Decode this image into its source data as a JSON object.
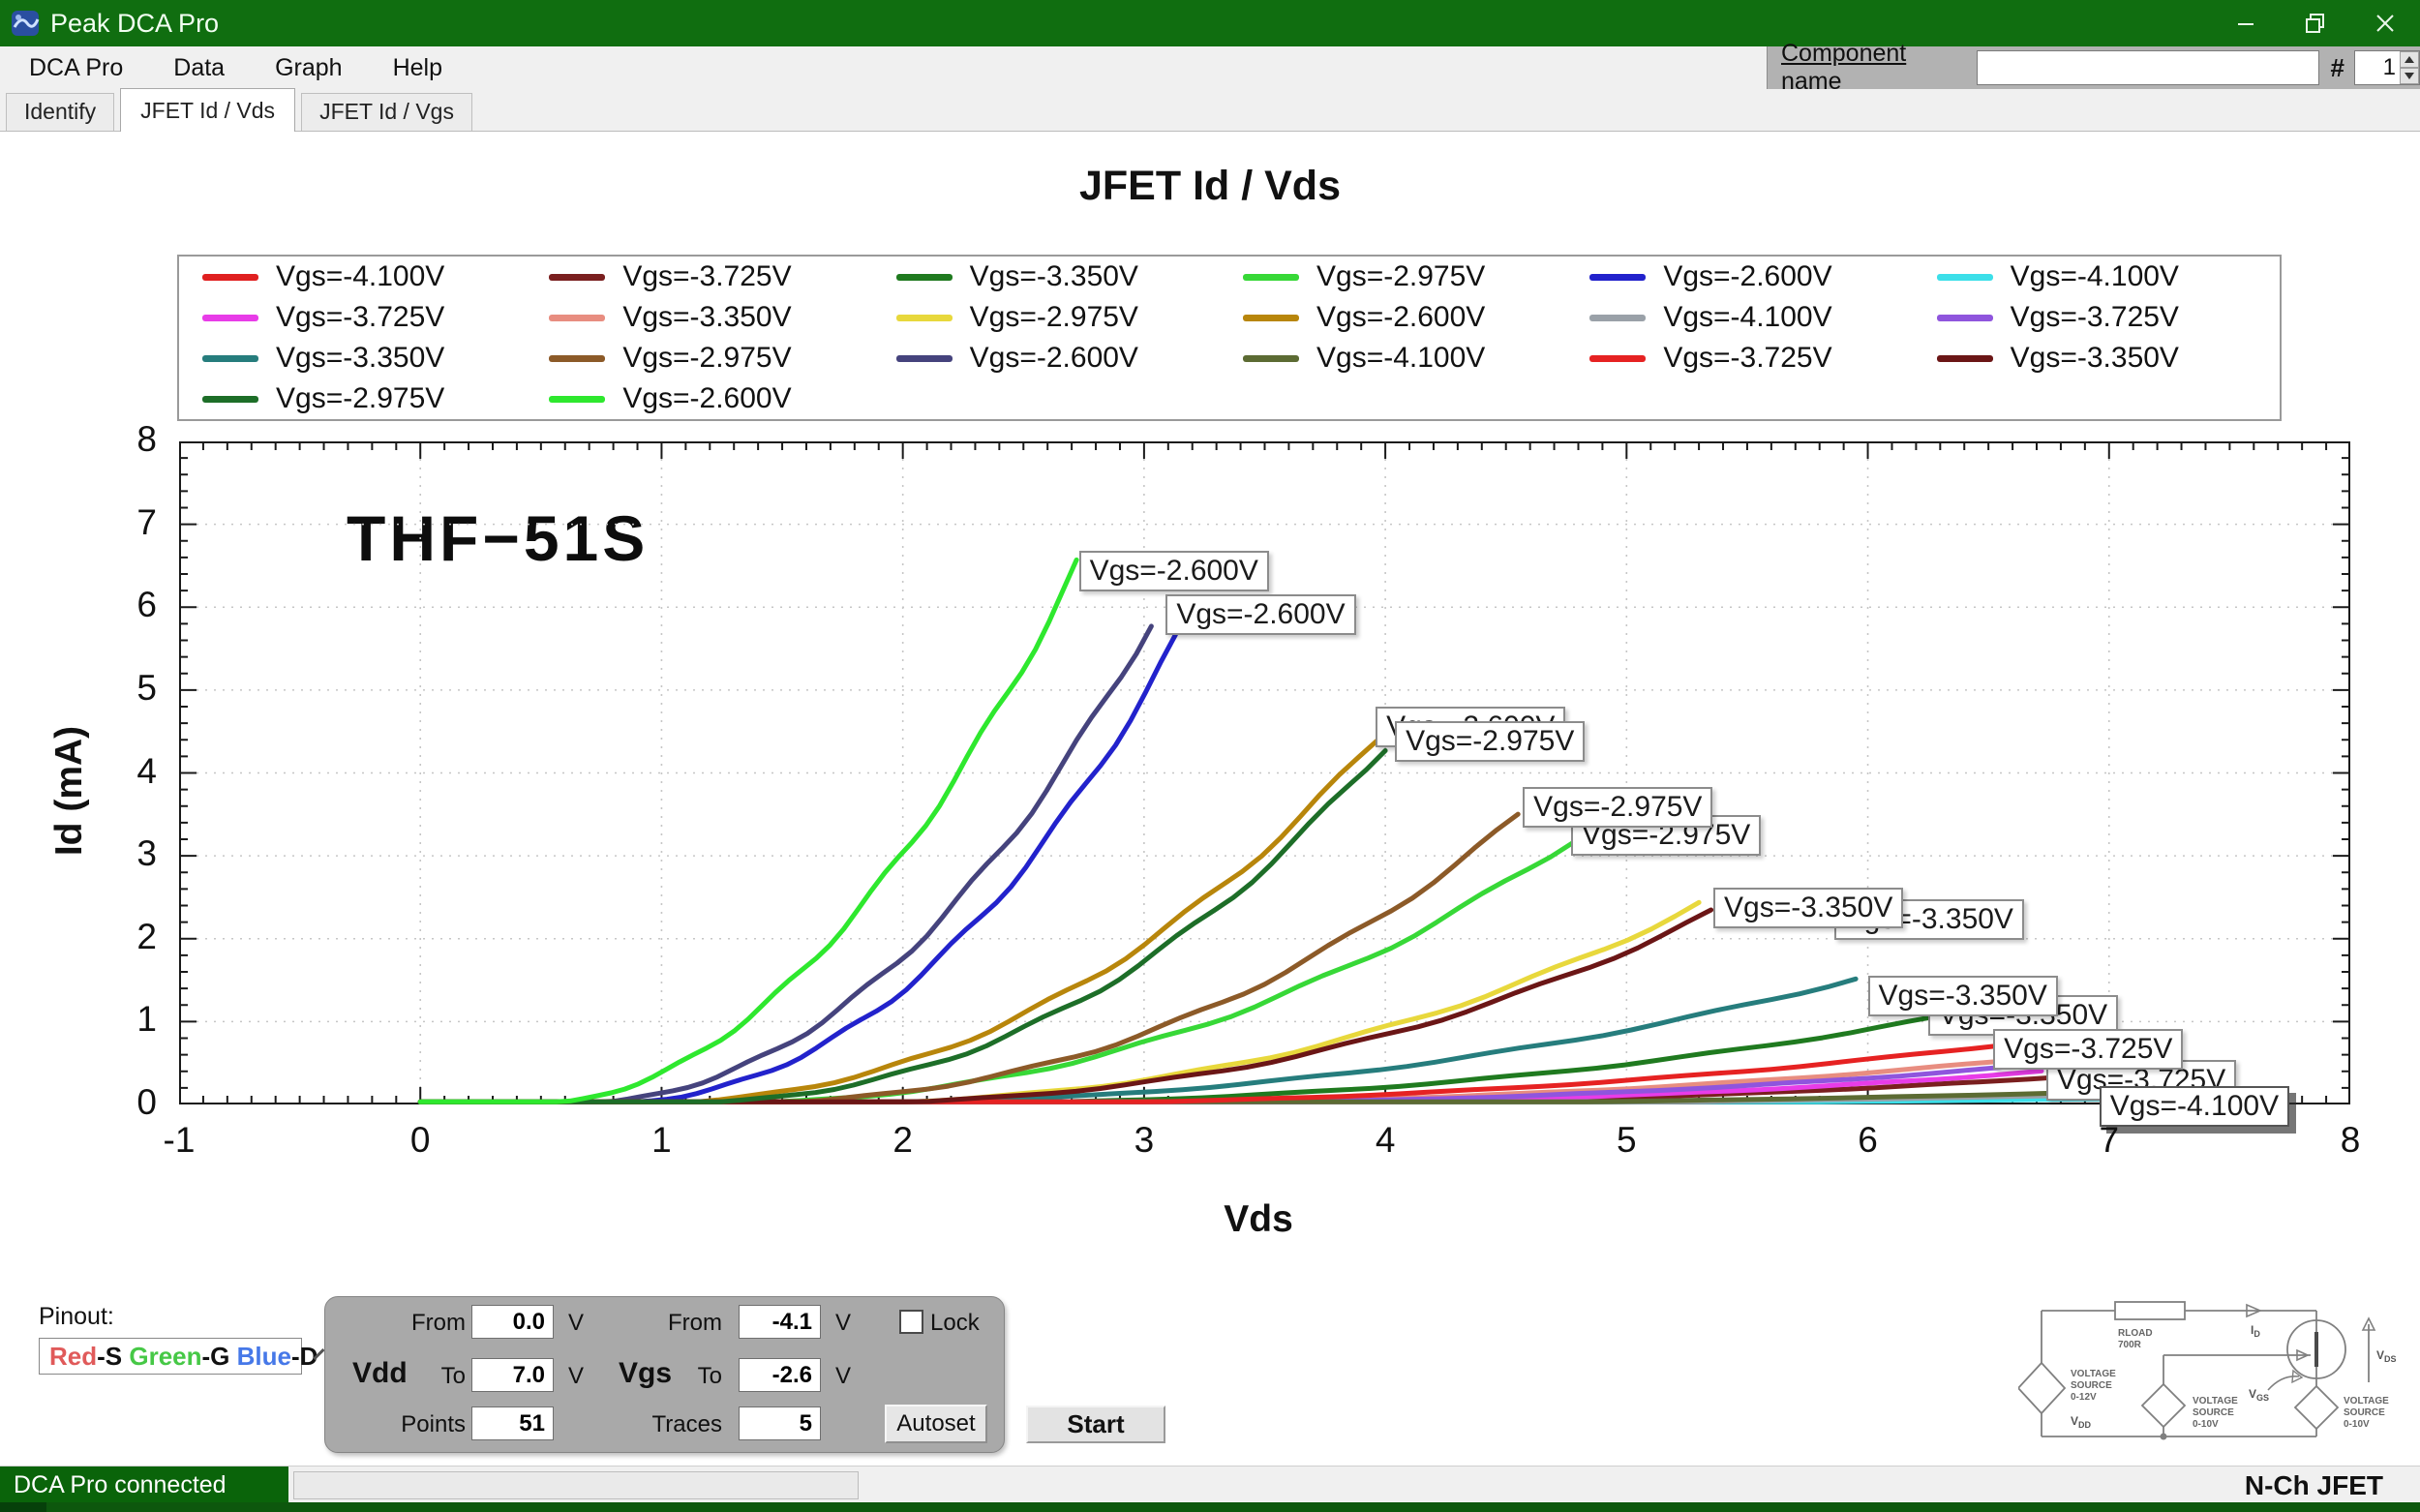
{
  "window": {
    "title": "Peak DCA Pro"
  },
  "menu": {
    "items": [
      "DCA Pro",
      "Data",
      "Graph",
      "Help"
    ]
  },
  "component_bar": {
    "label": "Component name",
    "value": "",
    "hash_label": "#",
    "count": "1"
  },
  "tabs": [
    {
      "label": "Identify",
      "active": false
    },
    {
      "label": "JFET Id / Vds",
      "active": true
    },
    {
      "label": "JFET Id / Vgs",
      "active": false
    }
  ],
  "chart_data": {
    "type": "line",
    "title": "JFET Id / Vds",
    "xlabel": "Vds",
    "ylabel": "Id (mA)",
    "annotation": "THF−51S",
    "xlim": [
      -1,
      8
    ],
    "ylim": [
      0,
      8
    ],
    "xticks": [
      -1,
      0,
      1,
      2,
      3,
      4,
      5,
      6,
      7,
      8
    ],
    "yticks": [
      0,
      1,
      2,
      3,
      4,
      5,
      6,
      7,
      8
    ],
    "grid": "dotted",
    "legend_position": "top",
    "series": [
      {
        "label": "Vgs=-4.100V",
        "color": "#e02020",
        "x_start": 2.8,
        "x_end": 7.0,
        "y_end": 0.1,
        "power": 2.2
      },
      {
        "label": "Vgs=-3.725V",
        "color": "#7a1f1f",
        "x_start": 2.5,
        "x_end": 6.78,
        "y_end": 0.33,
        "power": 2.5
      },
      {
        "label": "Vgs=-3.350V",
        "color": "#1f7a1f",
        "x_start": 1.6,
        "x_end": 6.28,
        "y_end": 1.05,
        "power": 2.4
      },
      {
        "label": "Vgs=-2.975V",
        "color": "#37d837",
        "x_start": 1.0,
        "x_end": 4.78,
        "y_end": 3.2,
        "power": 2.3
      },
      {
        "label": "Vgs=-2.600V",
        "color": "#2222cc",
        "x_start": 0.65,
        "x_end": 3.13,
        "y_end": 5.6,
        "power": 2.3
      },
      {
        "label": "Vgs=-4.100V",
        "color": "#3cdfe9",
        "x_start": 3.0,
        "x_end": 7.0,
        "y_end": 0.07,
        "power": 2.2
      },
      {
        "label": "Vgs=-3.725V",
        "color": "#e83ce8",
        "x_start": 2.4,
        "x_end": 6.72,
        "y_end": 0.4,
        "power": 2.5
      },
      {
        "label": "Vgs=-3.350V",
        "color": "#e88d80",
        "x_start": 2.0,
        "x_end": 6.65,
        "y_end": 0.55,
        "power": 2.4
      },
      {
        "label": "Vgs=-2.975V",
        "color": "#e8d83c",
        "x_start": 1.35,
        "x_end": 5.3,
        "y_end": 2.42,
        "power": 2.4
      },
      {
        "label": "Vgs=-2.600V",
        "color": "#b8860b",
        "x_start": 0.75,
        "x_end": 3.97,
        "y_end": 4.42,
        "power": 2.3
      },
      {
        "label": "Vgs=-4.100V",
        "color": "#9aa1a8",
        "x_start": 2.9,
        "x_end": 7.0,
        "y_end": 0.12,
        "power": 2.2
      },
      {
        "label": "Vgs=-3.725V",
        "color": "#8f55dd",
        "x_start": 2.2,
        "x_end": 6.7,
        "y_end": 0.48,
        "power": 2.4
      },
      {
        "label": "Vgs=-3.350V",
        "color": "#267d7d",
        "x_start": 1.3,
        "x_end": 5.95,
        "y_end": 1.52,
        "power": 2.3
      },
      {
        "label": "Vgs=-2.975V",
        "color": "#8c5a28",
        "x_start": 1.05,
        "x_end": 4.55,
        "y_end": 3.48,
        "power": 2.4
      },
      {
        "label": "Vgs=-2.600V",
        "color": "#45437d",
        "x_start": 0.55,
        "x_end": 3.03,
        "y_end": 5.82,
        "power": 2.2
      },
      {
        "label": "Vgs=-4.100V",
        "color": "#5c6b33",
        "x_start": 2.7,
        "x_end": 6.95,
        "y_end": 0.15,
        "power": 2.2
      },
      {
        "label": "Vgs=-3.725V",
        "color": "#e62222",
        "x_start": 1.8,
        "x_end": 6.55,
        "y_end": 0.72,
        "power": 2.3
      },
      {
        "label": "Vgs=-3.350V",
        "color": "#6b1616",
        "x_start": 1.3,
        "x_end": 5.35,
        "y_end": 2.32,
        "power": 2.5
      },
      {
        "label": "Vgs=-2.975V",
        "color": "#1d6e28",
        "x_start": 0.85,
        "x_end": 4.0,
        "y_end": 4.32,
        "power": 2.4
      },
      {
        "label": "Vgs=-2.600V",
        "color": "#2ee82e",
        "x_start": 0.45,
        "x_end": 2.72,
        "y_end": 6.5,
        "power": 2.0
      }
    ],
    "point_labels": [
      {
        "text": "Vgs=-2.600V",
        "x": 2.73,
        "y": 6.68,
        "shadow": false
      },
      {
        "text": "Vgs=-2.600V",
        "x": 3.09,
        "y": 6.16,
        "shadow": false
      },
      {
        "text": "Vgs=-2.600V",
        "x": 3.96,
        "y": 4.8,
        "shadow": false
      },
      {
        "text": "Vgs=-2.975V",
        "x": 4.04,
        "y": 4.63,
        "shadow": false
      },
      {
        "text": "Vgs=-2.975V",
        "x": 4.77,
        "y": 3.49,
        "shadow": false
      },
      {
        "text": "Vgs=-2.975V",
        "x": 4.57,
        "y": 3.83,
        "shadow": false
      },
      {
        "text": "Vgs=-3.350V",
        "x": 5.86,
        "y": 2.48,
        "shadow": false
      },
      {
        "text": "Vgs=-3.350V",
        "x": 5.36,
        "y": 2.62,
        "shadow": false
      },
      {
        "text": "Vgs=-3.350V",
        "x": 6.25,
        "y": 1.32,
        "shadow": false
      },
      {
        "text": "Vgs=-3.350V",
        "x": 6.0,
        "y": 1.55,
        "shadow": false
      },
      {
        "text": "Vgs=-3.725V",
        "x": 6.74,
        "y": 0.54,
        "shadow": false
      },
      {
        "text": "Vgs=-3.725V",
        "x": 6.52,
        "y": 0.91,
        "shadow": false
      },
      {
        "text": "Vgs=-4.100V",
        "x": 6.96,
        "y": 0.22,
        "shadow": true
      }
    ]
  },
  "pinout": {
    "label": "Pinout:",
    "parts": [
      {
        "text": "Red",
        "color": "#e05a5a"
      },
      {
        "text": "-S ",
        "color": "#111111"
      },
      {
        "text": "Green",
        "color": "#46c846"
      },
      {
        "text": "-G ",
        "color": "#111111"
      },
      {
        "text": "Blue",
        "color": "#4678e8"
      },
      {
        "text": "-D",
        "color": "#111111"
      }
    ]
  },
  "panel": {
    "vdd_label": "Vdd",
    "vgs_label": "Vgs",
    "from_label": "From",
    "to_label": "To",
    "points_label": "Points",
    "traces_label": "Traces",
    "unit": "V",
    "vdd_from": "0.0",
    "vdd_to": "7.0",
    "vgs_from": "-4.1",
    "vgs_to": "-2.6",
    "points": "51",
    "traces": "5",
    "lock_label": "Lock",
    "lock_checked": false,
    "autoset_label": "Autoset",
    "start_label": "Start"
  },
  "circuit": {
    "rload_line1": "RLOAD",
    "rload_line2": "700R",
    "current_label": "ID",
    "vds_label": "VDS",
    "vgs_label": "VGS",
    "vdd_label": "VDD",
    "source1": [
      "VOLTAGE",
      "SOURCE",
      "0-12V"
    ],
    "source2": [
      "VOLTAGE",
      "SOURCE",
      "0-10V"
    ],
    "source3": [
      "VOLTAGE",
      "SOURCE",
      "0-10V"
    ]
  },
  "status": {
    "left": "DCA Pro connected",
    "right": "N-Ch JFET"
  }
}
